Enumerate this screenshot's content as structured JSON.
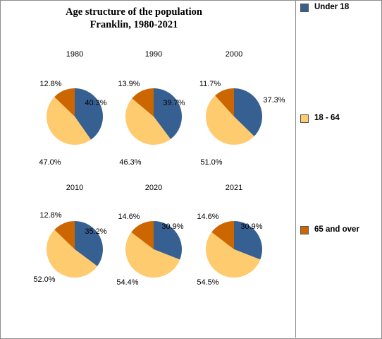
{
  "chart_data": {
    "type": "pie",
    "title": "Age structure of the population",
    "subtitle": "Franklin, 1980-2021",
    "legend": {
      "position": "right",
      "entries": [
        {
          "label": "Under 18",
          "color": "#376092"
        },
        {
          "label": "18 - 64",
          "color": "#FECB6E"
        },
        {
          "label": "65 and over",
          "color": "#CC6600"
        }
      ]
    },
    "pies": [
      {
        "year": "1980",
        "slices": [
          {
            "category": "Under 18",
            "value": 40.3,
            "label": "40.3%"
          },
          {
            "category": "18 - 64",
            "value": 47.0,
            "label": "47.0%"
          },
          {
            "category": "65 and over",
            "value": 12.8,
            "label": "12.8%"
          }
        ]
      },
      {
        "year": "1990",
        "slices": [
          {
            "category": "Under 18",
            "value": 39.7,
            "label": "39.7%"
          },
          {
            "category": "18 - 64",
            "value": 46.3,
            "label": "46.3%"
          },
          {
            "category": "65 and over",
            "value": 13.9,
            "label": "13.9%"
          }
        ]
      },
      {
        "year": "2000",
        "slices": [
          {
            "category": "Under 18",
            "value": 37.3,
            "label": "37.3%"
          },
          {
            "category": "18 - 64",
            "value": 51.0,
            "label": "51.0%"
          },
          {
            "category": "65 and over",
            "value": 11.7,
            "label": "11.7%"
          }
        ]
      },
      {
        "year": "2010",
        "slices": [
          {
            "category": "Under 18",
            "value": 35.2,
            "label": "35.2%"
          },
          {
            "category": "18 - 64",
            "value": 52.0,
            "label": "52.0%"
          },
          {
            "category": "65 and over",
            "value": 12.8,
            "label": "12.8%"
          }
        ]
      },
      {
        "year": "2020",
        "slices": [
          {
            "category": "Under 18",
            "value": 30.9,
            "label": "30.9%"
          },
          {
            "category": "18 - 64",
            "value": 54.4,
            "label": "54.4%"
          },
          {
            "category": "65 and over",
            "value": 14.6,
            "label": "14.6%"
          }
        ]
      },
      {
        "year": "2021",
        "slices": [
          {
            "category": "Under 18",
            "value": 30.9,
            "label": "30.9%"
          },
          {
            "category": "18 - 64",
            "value": 54.5,
            "label": "54.5%"
          },
          {
            "category": "65 and over",
            "value": 14.6,
            "label": "14.6%"
          }
        ]
      }
    ]
  }
}
